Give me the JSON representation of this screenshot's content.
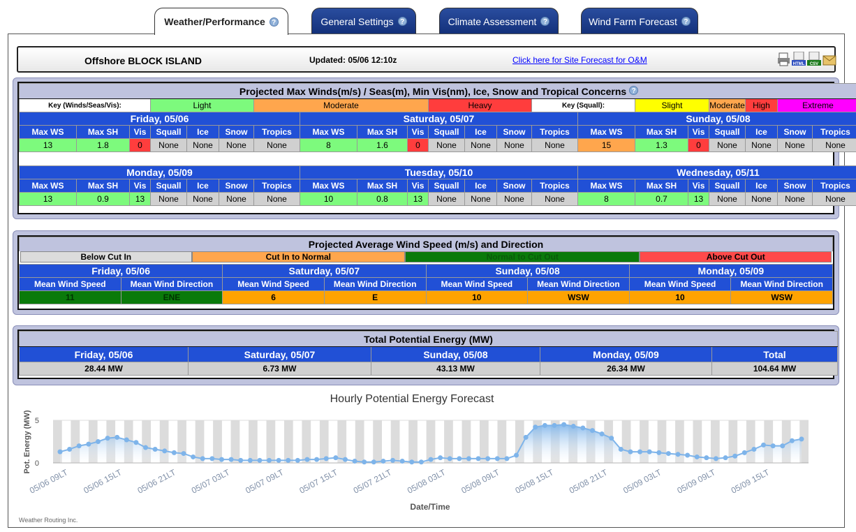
{
  "tabs": [
    {
      "label": "Weather/Performance",
      "active": true
    },
    {
      "label": "General Settings"
    },
    {
      "label": "Climate Assessment"
    },
    {
      "label": "Wind Farm Forecast"
    }
  ],
  "header": {
    "site": "Offshore BLOCK ISLAND",
    "updated": "Updated: 05/06 12:10z",
    "link": "Click here for Site Forecast for O&M",
    "icon_html": "HTML",
    "icon_csv": "CSV"
  },
  "max": {
    "title": "Projected Max Winds(m/s) / Seas(m), Min Vis(nm), Ice, Snow and Tropical Concerns",
    "key_label": "Key (Winds/Seas/Vis):",
    "key": [
      "Light",
      "Moderate",
      "Heavy"
    ],
    "squall_label": "Key (Squall):",
    "squall_key": [
      "Slight",
      "Moderate",
      "High",
      "Extreme"
    ],
    "cols": [
      "Max WS",
      "Max SH",
      "Vis",
      "Squall",
      "Ice",
      "Snow",
      "Tropics"
    ],
    "days": [
      {
        "day": "Friday, 05/06",
        "vals": [
          "13",
          "1.8",
          "0",
          "None",
          "None",
          "None",
          "None"
        ],
        "cls": [
          "g",
          "g",
          "r",
          "gy",
          "gy",
          "gy",
          "gy"
        ]
      },
      {
        "day": "Saturday, 05/07",
        "vals": [
          "8",
          "1.6",
          "0",
          "None",
          "None",
          "None",
          "None"
        ],
        "cls": [
          "g",
          "g",
          "r",
          "gy",
          "gy",
          "gy",
          "gy"
        ]
      },
      {
        "day": "Sunday, 05/08",
        "vals": [
          "15",
          "1.3",
          "0",
          "None",
          "None",
          "None",
          "None"
        ],
        "cls": [
          "o",
          "g",
          "r",
          "gy",
          "gy",
          "gy",
          "gy"
        ]
      },
      {
        "day": "Monday, 05/09",
        "vals": [
          "13",
          "0.9",
          "13",
          "None",
          "None",
          "None",
          "None"
        ],
        "cls": [
          "g",
          "g",
          "g",
          "gy",
          "gy",
          "gy",
          "gy"
        ]
      },
      {
        "day": "Tuesday, 05/10",
        "vals": [
          "10",
          "0.8",
          "13",
          "None",
          "None",
          "None",
          "None"
        ],
        "cls": [
          "g",
          "g",
          "g",
          "gy",
          "gy",
          "gy",
          "gy"
        ]
      },
      {
        "day": "Wednesday, 05/11",
        "vals": [
          "8",
          "0.7",
          "13",
          "None",
          "None",
          "None",
          "None"
        ],
        "cls": [
          "g",
          "g",
          "g",
          "gy",
          "gy",
          "gy",
          "gy"
        ]
      }
    ]
  },
  "avg": {
    "title": "Projected Average Wind Speed (m/s) and Direction",
    "key": [
      "Below Cut In",
      "Cut In to Normal",
      "Normal to Cut Out",
      "Above Cut Out"
    ],
    "cols": [
      "Mean Wind Speed",
      "Mean Wind Direction"
    ],
    "days": [
      {
        "day": "Friday, 05/06",
        "speed": "11",
        "dir": "ENE",
        "cls": "dg"
      },
      {
        "day": "Saturday, 05/07",
        "speed": "6",
        "dir": "E",
        "cls": "or"
      },
      {
        "day": "Sunday, 05/08",
        "speed": "10",
        "dir": "WSW",
        "cls": "or"
      },
      {
        "day": "Monday, 05/09",
        "speed": "10",
        "dir": "WSW",
        "cls": "or"
      }
    ]
  },
  "energy": {
    "title": "Total Potential Energy (MW)",
    "cols": [
      {
        "h": "Friday, 05/06",
        "v": "28.44 MW"
      },
      {
        "h": "Saturday, 05/07",
        "v": "6.73 MW"
      },
      {
        "h": "Sunday, 05/08",
        "v": "43.13 MW"
      },
      {
        "h": "Monday, 05/09",
        "v": "26.34 MW"
      },
      {
        "h": "Total",
        "v": "104.64 MW"
      }
    ]
  },
  "chart_data": {
    "type": "area",
    "title": "Hourly Potential Energy Forecast",
    "xlabel": "Date/Time",
    "ylabel": "Pot. Energy (MW)",
    "ylim": [
      0,
      5
    ],
    "yticks": [
      0,
      5
    ],
    "xticks": [
      "05/06 09LT",
      "05/06 15LT",
      "05/06 21LT",
      "05/07 03LT",
      "05/07 09LT",
      "05/07 15LT",
      "05/07 21LT",
      "05/08 03LT",
      "05/08 09LT",
      "05/08 15LT",
      "05/08 21LT",
      "05/09 03LT",
      "05/09 09LT",
      "05/09 15LT"
    ],
    "values": [
      1.3,
      1.6,
      2.0,
      2.2,
      2.5,
      2.9,
      3.0,
      2.7,
      2.4,
      1.8,
      1.6,
      1.4,
      1.2,
      1.1,
      0.7,
      0.5,
      0.5,
      0.4,
      0.4,
      0.3,
      0.3,
      0.3,
      0.3,
      0.3,
      0.3,
      0.3,
      0.4,
      0.4,
      0.5,
      0.6,
      0.4,
      0.2,
      0.1,
      0.1,
      0.2,
      0.3,
      0.2,
      0.1,
      0.1,
      0.4,
      0.6,
      0.5,
      0.5,
      0.5,
      0.5,
      0.5,
      0.5,
      0.5,
      0.9,
      3.0,
      4.2,
      4.4,
      4.4,
      4.5,
      4.3,
      4.1,
      3.8,
      3.4,
      2.9,
      1.6,
      1.3,
      1.3,
      1.3,
      1.2,
      1.1,
      1.0,
      0.9,
      0.7,
      0.6,
      0.5,
      0.6,
      0.8,
      1.2,
      1.6,
      2.1,
      2.0,
      2.0,
      2.6,
      2.8
    ],
    "color": "#7eb4ea"
  },
  "footer": "Weather Routing Inc."
}
